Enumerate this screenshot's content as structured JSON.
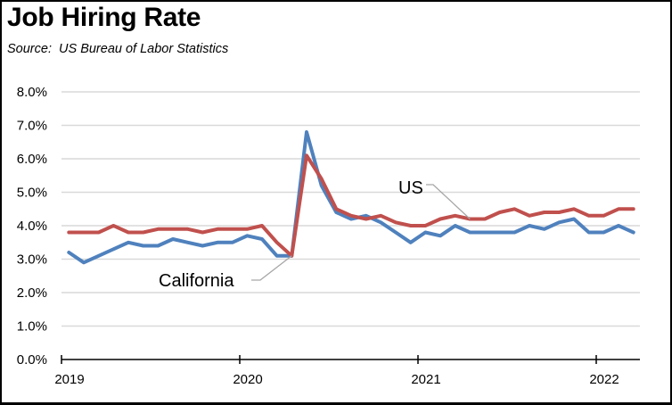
{
  "chart_data": {
    "type": "line",
    "title": "Job Hiring Rate",
    "subtitle": "Source:  US Bureau of Labor Statistics",
    "xlabel": "",
    "ylabel": "",
    "x_start": "2019-01",
    "x_frequency": "monthly",
    "x_ticks": [
      "2019",
      "2020",
      "2021",
      "2022"
    ],
    "y_ticks": [
      "0.0%",
      "1.0%",
      "2.0%",
      "3.0%",
      "4.0%",
      "5.0%",
      "6.0%",
      "7.0%",
      "8.0%"
    ],
    "ylim": [
      0,
      8
    ],
    "grid": "horizontal",
    "legend": "none (direct labels)",
    "series": [
      {
        "name": "US",
        "color": "#C0504D",
        "values": [
          3.8,
          3.8,
          3.8,
          4.0,
          3.8,
          3.8,
          3.9,
          3.9,
          3.9,
          3.8,
          3.9,
          3.9,
          3.9,
          4.0,
          3.5,
          3.1,
          6.1,
          5.4,
          4.5,
          4.3,
          4.2,
          4.3,
          4.1,
          4.0,
          4.0,
          4.2,
          4.3,
          4.2,
          4.2,
          4.4,
          4.5,
          4.3,
          4.4,
          4.4,
          4.5,
          4.3,
          4.3,
          4.5,
          4.5
        ]
      },
      {
        "name": "California",
        "color": "#4F81BD",
        "values": [
          3.2,
          2.9,
          3.1,
          3.3,
          3.5,
          3.4,
          3.4,
          3.6,
          3.5,
          3.4,
          3.5,
          3.5,
          3.7,
          3.6,
          3.1,
          3.1,
          6.8,
          5.2,
          4.4,
          4.2,
          4.3,
          4.1,
          3.8,
          3.5,
          3.8,
          3.7,
          4.0,
          3.8,
          3.8,
          3.8,
          3.8,
          4.0,
          3.9,
          4.1,
          4.2,
          3.8,
          3.8,
          4.0,
          3.8
        ]
      }
    ],
    "annotations": [
      {
        "text": "US",
        "points_to_series": "US",
        "points_to_month": "2021-04"
      },
      {
        "text": "California",
        "points_to_series": "California",
        "points_to_month": "2020-04"
      }
    ]
  }
}
